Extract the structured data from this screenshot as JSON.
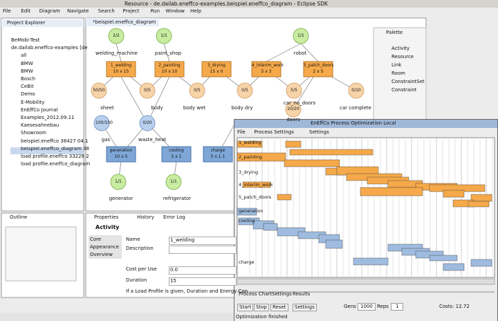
{
  "window_title": "Resource - de.dailab.eneffco-examples.beispiel.eneffco_diagram - Eclipse SDK",
  "menu": [
    "File",
    "Edit",
    "Diagram",
    "Navigate",
    "Search",
    "Project",
    "Run",
    "Window",
    "Help"
  ],
  "project_explorer": {
    "title": "Project Explorer",
    "items": [
      "BeMobi-Test",
      "de.dailab.eneffco-examples [de",
      "all",
      "BMW",
      "BMW",
      "Bosch",
      "CeBit",
      "Demo",
      "E-Mobility",
      "EnEffCo Journal",
      "Examples_2012.09.11",
      "Kaesesahnebau",
      "Showroom",
      "beispiel.eneffco 38427 04.1",
      "beispiel.eneffco_diagram 38",
      "load profile.eneffco 33228 2",
      "load profile.eneffco_diagram"
    ]
  },
  "outline": {
    "title": "Outline"
  },
  "editor": {
    "tab": "*beispiel.eneffco_diagram",
    "resources": [
      {
        "label": "2/2",
        "caption": "welding_machine"
      },
      {
        "label": "1/1",
        "caption": "paint_shop"
      },
      {
        "label": "1/1",
        "caption": "robot"
      },
      {
        "label": "1/1",
        "caption": "generator"
      },
      {
        "label": "1/1",
        "caption": "refrigerator"
      }
    ],
    "activities": [
      {
        "name": "1_welding",
        "size": "10 x 15"
      },
      {
        "name": "2_painting",
        "size": "10 x 10"
      },
      {
        "name": "3_drying",
        "size": "15 x 0"
      },
      {
        "name": "4_interim_work",
        "size": "5 x 3"
      },
      {
        "name": "5_patch_doors",
        "size": "2 x 5"
      }
    ],
    "states": [
      {
        "label": "50/50",
        "caption": "sheet"
      },
      {
        "label": "0/5",
        "caption": "body"
      },
      {
        "label": "0/5",
        "caption": "body wet"
      },
      {
        "label": "0/5",
        "caption": "body dry"
      },
      {
        "label": "5/5",
        "caption": "car_no_doors"
      },
      {
        "label": "0/10",
        "caption": "car complete"
      },
      {
        "label": "20/20",
        "caption": "doors"
      }
    ],
    "energy_states": [
      {
        "label": "100/100",
        "caption": "gas"
      },
      {
        "label": "0/20",
        "caption": "waste_heat"
      }
    ],
    "energy_activities": [
      {
        "name": "generation",
        "size": "10 x 5"
      },
      {
        "name": "cooling",
        "size": "5 x 1"
      },
      {
        "name": "charge",
        "size": "5 x 1.1"
      }
    ]
  },
  "palette": {
    "title": "Palette",
    "items": [
      "Activity",
      "Resource",
      "Link",
      "Room",
      "ConstraintSet",
      "Constraint"
    ]
  },
  "properties": {
    "tabs": [
      "Properties",
      "History",
      "Error Log"
    ],
    "heading": "Activity",
    "side_tabs": [
      "Core",
      "Appearance",
      "Overview"
    ],
    "fields": [
      {
        "label": "Name",
        "value": "1_welding"
      },
      {
        "label": "Description",
        "value": ""
      },
      {
        "label": "Cost per Use",
        "value": "0.0"
      },
      {
        "label": "Duration",
        "value": "15"
      }
    ],
    "note": "If a Load Profile is given, Duration and Energy Con"
  },
  "optimizer": {
    "title": "EnEffCo Process Optimization Local",
    "menu": [
      "File",
      "Process Settings",
      "Settings"
    ],
    "rows": [
      "1_welding",
      "2_painting",
      "3_drying",
      "4_interim_work",
      "5_patch_doors",
      "generation",
      "cooling",
      "charge"
    ],
    "tabs": [
      "Process Chart",
      "Settings",
      "Results"
    ],
    "buttons": [
      "Start",
      "Stop",
      "Reset",
      "Settings"
    ],
    "gens_label": "Gens",
    "gens": "1000",
    "reps_label": "Reps",
    "reps": "1",
    "costs": "Costs: 12.72",
    "status": "Optimization finished"
  }
}
